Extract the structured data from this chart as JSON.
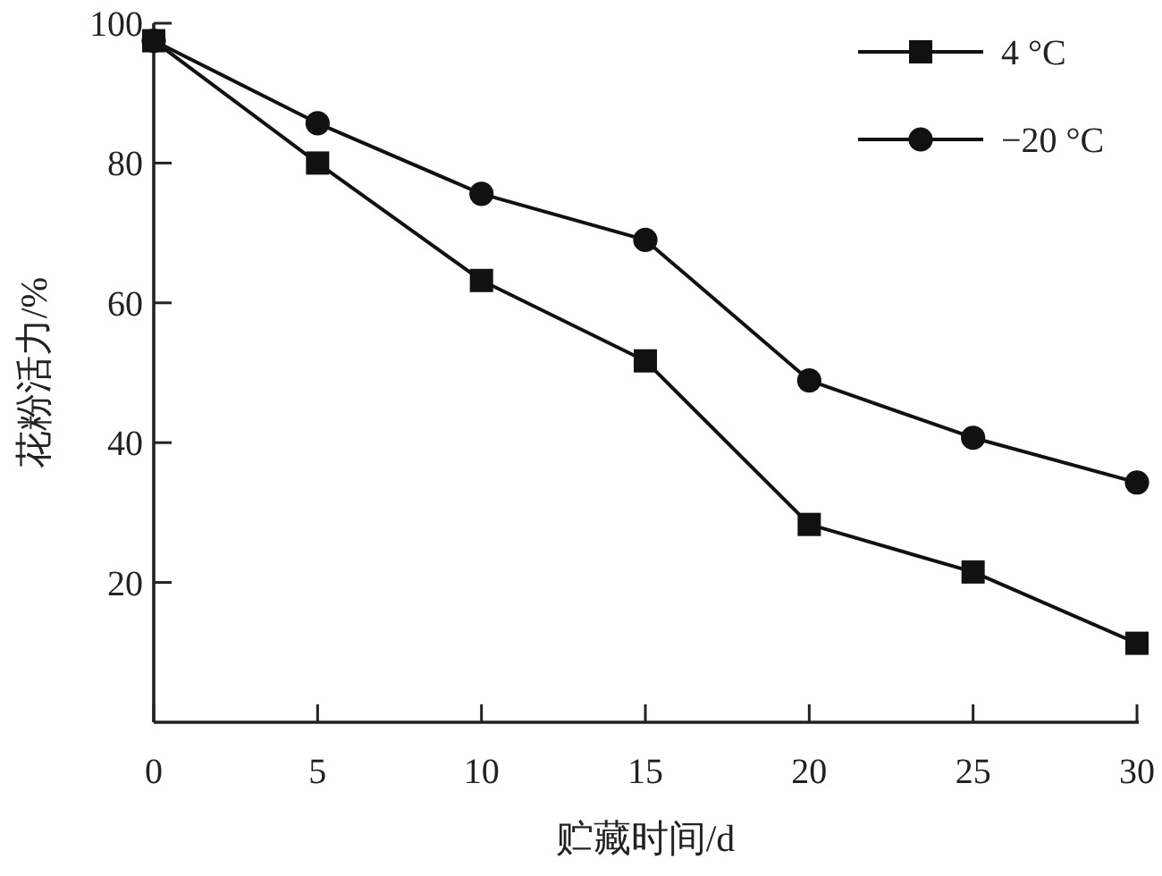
{
  "chart_data": {
    "type": "line",
    "xlabel": "贮藏时间/d",
    "ylabel": "花粉活力/%",
    "x": [
      0,
      5,
      10,
      15,
      20,
      25,
      30
    ],
    "series": [
      {
        "name": "4 °C",
        "color": "#111111",
        "marker": "square",
        "values": [
          97.5,
          80,
          63.2,
          51.7,
          28.3,
          21.5,
          11.3
        ]
      },
      {
        "name": "−20 °C",
        "color": "#111111",
        "marker": "circle",
        "values": [
          97.5,
          85.7,
          75.6,
          69,
          48.9,
          40.7,
          34.3
        ]
      }
    ],
    "xlim": [
      0,
      30
    ],
    "xticks": [
      0,
      5,
      10,
      15,
      20,
      25,
      30
    ],
    "ylim": [
      0,
      100
    ],
    "yticks": [
      20,
      40,
      60,
      80,
      100
    ],
    "legend": "top right"
  }
}
